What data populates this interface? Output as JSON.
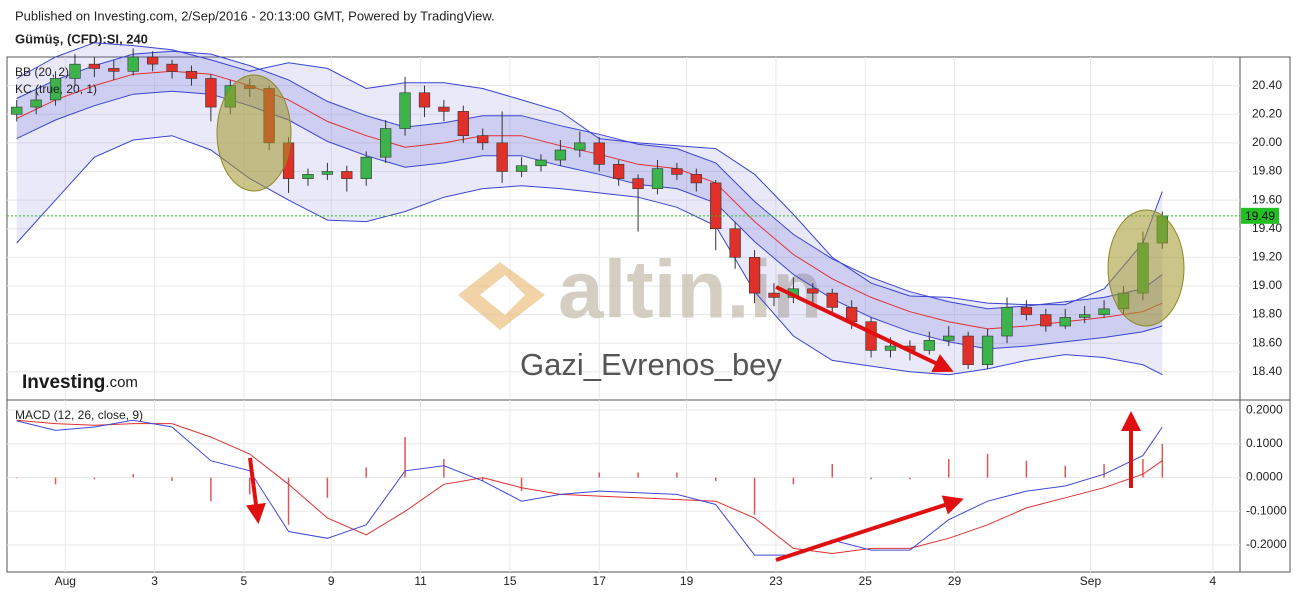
{
  "header": {
    "published": "Published on Investing.com, 2/Sep/2016 - 20:13:00 GMT, Powered by TradingView.",
    "symbol": "Gümüş, (CFD):SI, 240"
  },
  "watermarks": {
    "site": "altin.in",
    "author": "Gazi_Evrenos_bey",
    "brand": "Investing",
    "brand_suffix": ".com"
  },
  "chart_data": [
    {
      "type": "candlestick",
      "up_color": "#3cb44b",
      "down_color": "#e0302a",
      "x": [
        0.5,
        1.5,
        2.5,
        3.5,
        4.5,
        5.5,
        6.5,
        7.5,
        8.5,
        9.5,
        10.5,
        11.5,
        12.5,
        13.5,
        14.5,
        15.5,
        16.5,
        17.5,
        18.5,
        19.5,
        20.5,
        21.5,
        22.5,
        23.5,
        24.5,
        25.5,
        26.5,
        27.5,
        28.5,
        29.5,
        30.5,
        31.5,
        32.5,
        33.5,
        34.5,
        35.5,
        36.5,
        37.5,
        38.5,
        39.5,
        40.5,
        41.5,
        42.5,
        43.5,
        44.5,
        45.5,
        46.5,
        47.5,
        48.5,
        49.5,
        50.5,
        51.5,
        52.5,
        53.5,
        54.5,
        55.5,
        56.5,
        57.5,
        58.5,
        59.5
      ],
      "candles": [
        [
          20.2,
          20.3,
          20.15,
          20.25
        ],
        [
          20.25,
          20.36,
          20.2,
          20.3
        ],
        [
          20.3,
          20.5,
          20.26,
          20.45
        ],
        [
          20.45,
          20.62,
          20.4,
          20.55
        ],
        [
          20.55,
          20.6,
          20.46,
          20.52
        ],
        [
          20.52,
          20.58,
          20.44,
          20.5
        ],
        [
          20.5,
          20.66,
          20.47,
          20.6
        ],
        [
          20.6,
          20.64,
          20.5,
          20.55
        ],
        [
          20.55,
          20.58,
          20.45,
          20.5
        ],
        [
          20.5,
          20.54,
          20.4,
          20.45
        ],
        [
          20.45,
          20.48,
          20.15,
          20.25
        ],
        [
          20.25,
          20.44,
          20.2,
          20.4
        ],
        [
          20.4,
          20.45,
          20.32,
          20.38
        ],
        [
          20.38,
          20.4,
          19.95,
          20.0
        ],
        [
          20.0,
          20.04,
          19.65,
          19.75
        ],
        [
          19.75,
          19.82,
          19.7,
          19.78
        ],
        [
          19.78,
          19.86,
          19.74,
          19.8
        ],
        [
          19.8,
          19.84,
          19.66,
          19.75
        ],
        [
          19.75,
          19.94,
          19.7,
          19.9
        ],
        [
          19.9,
          20.16,
          19.86,
          20.1
        ],
        [
          20.1,
          20.46,
          20.05,
          20.35
        ],
        [
          20.35,
          20.4,
          20.18,
          20.25
        ],
        [
          20.25,
          20.3,
          20.15,
          20.22
        ],
        [
          20.22,
          20.26,
          20.0,
          20.05
        ],
        [
          20.05,
          20.1,
          19.95,
          20.0
        ],
        [
          20.0,
          20.22,
          19.72,
          19.8
        ],
        [
          19.8,
          19.9,
          19.76,
          19.84
        ],
        [
          19.84,
          19.92,
          19.8,
          19.88
        ],
        [
          19.88,
          20.02,
          19.84,
          19.95
        ],
        [
          19.95,
          20.08,
          19.9,
          20.0
        ],
        [
          20.0,
          20.04,
          19.8,
          19.85
        ],
        [
          19.85,
          19.88,
          19.7,
          19.75
        ],
        [
          19.75,
          19.78,
          19.38,
          19.68
        ],
        [
          19.68,
          19.88,
          19.64,
          19.82
        ],
        [
          19.82,
          19.86,
          19.74,
          19.78
        ],
        [
          19.78,
          19.82,
          19.66,
          19.72
        ],
        [
          19.72,
          19.74,
          19.25,
          19.4
        ],
        [
          19.4,
          19.45,
          19.12,
          19.2
        ],
        [
          19.2,
          19.25,
          18.88,
          18.95
        ],
        [
          18.95,
          19.02,
          18.86,
          18.92
        ],
        [
          18.92,
          19.06,
          18.88,
          18.98
        ],
        [
          18.98,
          19.02,
          18.88,
          18.95
        ],
        [
          18.95,
          18.98,
          18.8,
          18.85
        ],
        [
          18.85,
          18.9,
          18.7,
          18.75
        ],
        [
          18.75,
          18.78,
          18.5,
          18.55
        ],
        [
          18.55,
          18.64,
          18.5,
          18.58
        ],
        [
          18.58,
          18.62,
          18.48,
          18.55
        ],
        [
          18.55,
          18.68,
          18.52,
          18.62
        ],
        [
          18.62,
          18.72,
          18.58,
          18.65
        ],
        [
          18.65,
          18.68,
          18.42,
          18.45
        ],
        [
          18.45,
          18.7,
          18.42,
          18.65
        ],
        [
          18.65,
          18.92,
          18.6,
          18.85
        ],
        [
          18.85,
          18.9,
          18.76,
          18.8
        ],
        [
          18.8,
          18.84,
          18.68,
          18.72
        ],
        [
          18.72,
          18.84,
          18.7,
          18.78
        ],
        [
          18.78,
          18.86,
          18.74,
          18.8
        ],
        [
          18.8,
          18.9,
          18.78,
          18.84
        ],
        [
          18.84,
          19.0,
          18.8,
          18.95
        ],
        [
          18.95,
          19.38,
          18.9,
          19.3
        ],
        [
          19.3,
          19.52,
          19.26,
          19.49
        ]
      ],
      "indicator_x": [
        0.5,
        2.5,
        4.5,
        6.5,
        8.5,
        10.5,
        12.5,
        14.5,
        16.5,
        18.5,
        20.5,
        22.5,
        24.5,
        26.5,
        28.5,
        30.5,
        32.5,
        34.5,
        36.5,
        38.5,
        40.5,
        42.5,
        44.5,
        46.5,
        48.5,
        50.5,
        52.5,
        54.5,
        56.5,
        58.5,
        59.5
      ],
      "bollinger": {
        "name": "BB (20, 2)",
        "color": "#3a44d0",
        "upper": [
          20.45,
          20.6,
          20.7,
          20.68,
          20.65,
          20.58,
          20.5,
          20.56,
          20.52,
          20.38,
          20.42,
          20.42,
          20.38,
          20.3,
          20.22,
          20.03,
          20.0,
          19.98,
          19.96,
          19.78,
          19.5,
          19.2,
          19.02,
          18.93,
          18.92,
          18.88,
          18.87,
          18.87,
          18.98,
          19.3,
          19.66
        ],
        "lower": [
          19.3,
          19.6,
          19.9,
          20.02,
          20.05,
          19.95,
          19.75,
          19.6,
          19.46,
          19.45,
          19.52,
          19.62,
          19.68,
          19.7,
          19.68,
          19.65,
          19.62,
          19.55,
          19.42,
          18.96,
          18.65,
          18.48,
          18.44,
          18.4,
          18.38,
          18.42,
          18.48,
          18.52,
          18.5,
          18.45,
          18.38
        ]
      },
      "keltner": {
        "name": "KC (true, 20, 1)",
        "color": "#3a44d0",
        "middle_color": "#e03030",
        "upper": [
          20.31,
          20.44,
          20.54,
          20.62,
          20.64,
          20.62,
          20.54,
          20.44,
          20.29,
          20.19,
          20.11,
          20.14,
          20.19,
          20.19,
          20.12,
          20.06,
          19.99,
          19.96,
          19.86,
          19.59,
          19.36,
          19.19,
          19.06,
          18.96,
          18.89,
          18.84,
          18.86,
          18.89,
          18.92,
          18.98,
          19.08
        ],
        "middle": [
          20.17,
          20.3,
          20.4,
          20.48,
          20.5,
          20.48,
          20.4,
          20.3,
          20.15,
          20.05,
          19.97,
          20.0,
          20.05,
          20.05,
          19.98,
          19.92,
          19.85,
          19.82,
          19.72,
          19.45,
          19.22,
          19.05,
          18.92,
          18.82,
          18.75,
          18.7,
          18.72,
          18.75,
          18.78,
          18.82,
          18.88
        ],
        "lower": [
          20.03,
          20.16,
          20.26,
          20.34,
          20.36,
          20.34,
          20.26,
          20.16,
          20.01,
          19.91,
          19.83,
          19.86,
          19.91,
          19.91,
          19.84,
          19.78,
          19.71,
          19.68,
          19.58,
          19.31,
          19.08,
          18.91,
          18.78,
          18.68,
          18.61,
          18.56,
          18.58,
          18.61,
          18.64,
          18.68,
          18.72
        ]
      },
      "last_price": 19.49,
      "last_price_color": "#22c022",
      "ylim": [
        18.21,
        20.6
      ],
      "yticks": [
        {
          "value": 18.4,
          "label": "18.40"
        },
        {
          "value": 18.6,
          "label": "18.60"
        },
        {
          "value": 18.8,
          "label": "18.80"
        },
        {
          "value": 19.0,
          "label": "19.00"
        },
        {
          "value": 19.2,
          "label": "19.20"
        },
        {
          "value": 19.4,
          "label": "19.40"
        },
        {
          "value": 19.6,
          "label": "19.60"
        },
        {
          "value": 19.8,
          "label": "19.80"
        },
        {
          "value": 20.0,
          "label": "20.00"
        },
        {
          "value": 20.2,
          "label": "20.20"
        },
        {
          "value": 20.4,
          "label": "20.40"
        }
      ],
      "grid": true
    },
    {
      "type": "macd",
      "title": "MACD (12, 26, close, 9)",
      "x": [
        0.5,
        2.5,
        4.5,
        6.5,
        8.5,
        10.5,
        12.5,
        14.5,
        16.5,
        18.5,
        20.5,
        22.5,
        24.5,
        26.5,
        28.5,
        30.5,
        32.5,
        34.5,
        36.5,
        38.5,
        40.5,
        42.5,
        44.5,
        46.5,
        48.5,
        50.5,
        52.5,
        54.5,
        56.5,
        58.5,
        59.5
      ],
      "macd": {
        "color": "#4048d8",
        "values": [
          0.168,
          0.14,
          0.15,
          0.17,
          0.15,
          0.05,
          0.02,
          -0.16,
          -0.18,
          -0.14,
          0.02,
          0.035,
          -0.01,
          -0.07,
          -0.05,
          -0.04,
          -0.045,
          -0.05,
          -0.08,
          -0.23,
          -0.23,
          -0.185,
          -0.215,
          -0.215,
          -0.125,
          -0.07,
          -0.04,
          -0.025,
          0.01,
          0.065,
          0.15
        ]
      },
      "signal": {
        "color": "#e03030",
        "values": [
          0.17,
          0.16,
          0.155,
          0.16,
          0.16,
          0.12,
          0.07,
          -0.02,
          -0.12,
          -0.17,
          -0.1,
          -0.02,
          0.0,
          -0.03,
          -0.05,
          -0.055,
          -0.06,
          -0.065,
          -0.07,
          -0.12,
          -0.21,
          -0.225,
          -0.21,
          -0.21,
          -0.18,
          -0.14,
          -0.09,
          -0.06,
          -0.03,
          0.01,
          0.05
        ]
      },
      "histogram": {
        "color": "#e05555",
        "values": [
          -0.002,
          -0.02,
          -0.005,
          0.01,
          -0.01,
          -0.07,
          -0.05,
          -0.14,
          -0.06,
          0.03,
          0.12,
          0.055,
          -0.01,
          -0.04,
          0.0,
          0.015,
          0.015,
          0.015,
          -0.01,
          -0.11,
          -0.02,
          0.04,
          -0.005,
          -0.005,
          0.055,
          0.07,
          0.05,
          0.035,
          0.04,
          0.055,
          0.1
        ]
      },
      "ylim": [
        -0.28,
        0.23
      ],
      "yticks": [
        {
          "value": 0.2,
          "label": "0.2000"
        },
        {
          "value": 0.1,
          "label": "0.1000"
        },
        {
          "value": 0.0,
          "label": "0.0000"
        },
        {
          "value": -0.1,
          "label": "-0.1000"
        },
        {
          "value": -0.2,
          "label": "-0.2000"
        }
      ],
      "xlim": [
        0,
        63.5
      ],
      "xticks": [
        {
          "value": 3.0,
          "label": "Aug"
        },
        {
          "value": 7.6,
          "label": "3"
        },
        {
          "value": 12.2,
          "label": "5"
        },
        {
          "value": 16.7,
          "label": "9"
        },
        {
          "value": 21.3,
          "label": "11"
        },
        {
          "value": 25.9,
          "label": "15"
        },
        {
          "value": 30.5,
          "label": "17"
        },
        {
          "value": 35.0,
          "label": "19"
        },
        {
          "value": 39.6,
          "label": "23"
        },
        {
          "value": 44.2,
          "label": "25"
        },
        {
          "value": 48.8,
          "label": "29"
        },
        {
          "value": 55.8,
          "label": "Sep"
        },
        {
          "value": 62.1,
          "label": "4"
        }
      ],
      "grid": true
    }
  ]
}
